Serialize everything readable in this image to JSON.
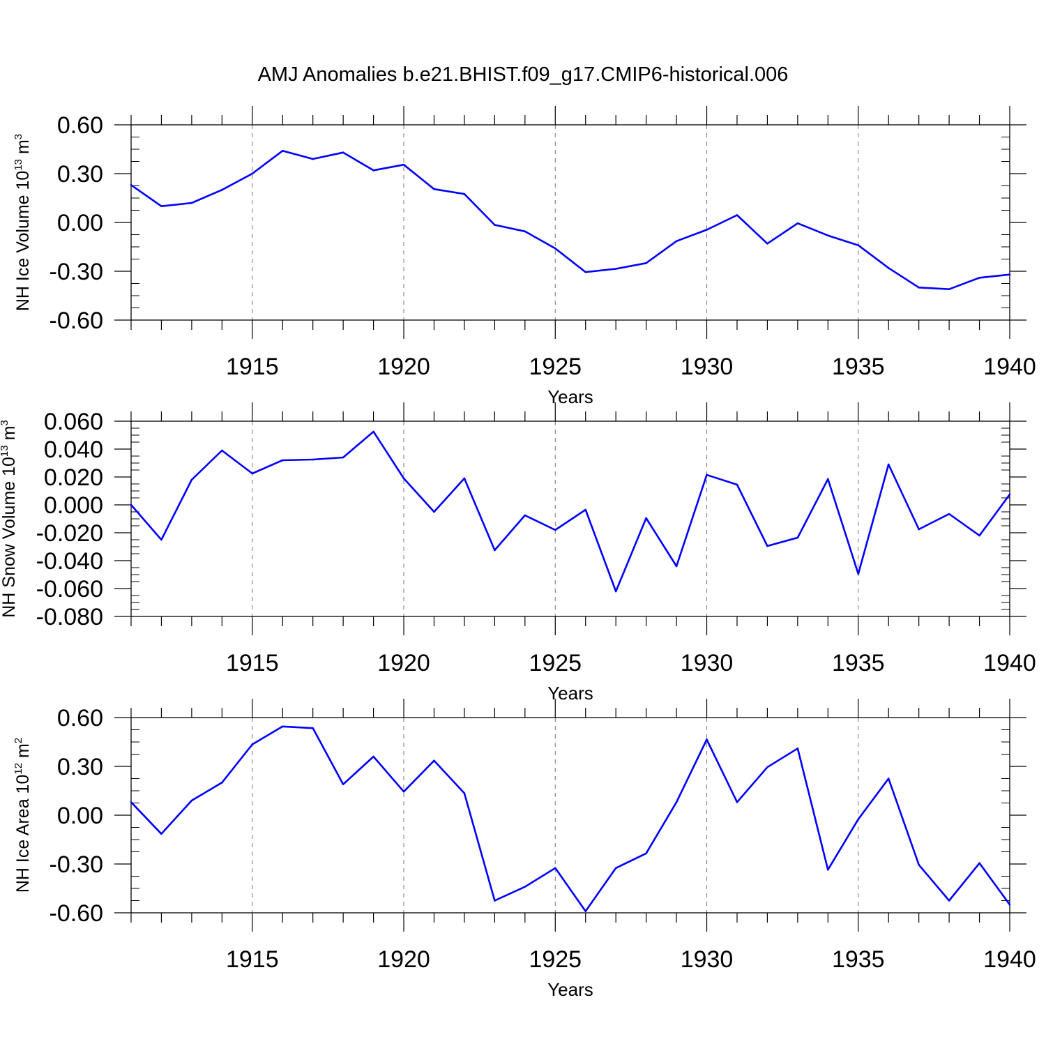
{
  "chart_data": {
    "title": "AMJ Anomalies b.e21.BHIST.f09_g17.CMIP6-historical.006",
    "type": "line",
    "line_color": "#0000ff",
    "panels": [
      {
        "type": "line",
        "ylabel": "NH Ice Volume 10",
        "ylabel_exponent": "13",
        "ylabel_unit": " m",
        "ylabel_unit_exponent": "3",
        "xlabel": "Years",
        "xlim": [
          1911,
          1940
        ],
        "ylim": [
          -0.6,
          0.6
        ],
        "yticks": [
          0.6,
          0.3,
          0.0,
          -0.3,
          -0.6
        ],
        "ytick_labels": [
          "0.60",
          "0.30",
          "0.00",
          "-0.30",
          "-0.60"
        ],
        "xticks": [
          1915,
          1920,
          1925,
          1930,
          1935,
          1940
        ],
        "xtick_labels": [
          "1915",
          "1920",
          "1925",
          "1930",
          "1935",
          "1940"
        ],
        "grid": "vertical dashed at labeled years",
        "x": [
          1911,
          1912,
          1913,
          1914,
          1915,
          1916,
          1917,
          1918,
          1919,
          1920,
          1921,
          1922,
          1923,
          1924,
          1925,
          1926,
          1927,
          1928,
          1929,
          1930,
          1931,
          1932,
          1933,
          1934,
          1935,
          1936,
          1937,
          1938,
          1939,
          1940
        ],
        "values": [
          0.23,
          0.1,
          0.12,
          0.2,
          0.3,
          0.44,
          0.39,
          0.43,
          0.32,
          0.355,
          0.205,
          0.175,
          -0.015,
          -0.055,
          -0.16,
          -0.305,
          -0.285,
          -0.25,
          -0.115,
          -0.045,
          0.045,
          -0.13,
          -0.005,
          -0.08,
          -0.14,
          -0.28,
          -0.4,
          -0.41,
          -0.34,
          -0.32
        ]
      },
      {
        "type": "line",
        "ylabel": "NH Snow Volume 10",
        "ylabel_exponent": "13",
        "ylabel_unit": " m",
        "ylabel_unit_exponent": "3",
        "xlabel": "Years",
        "xlim": [
          1911,
          1940
        ],
        "ylim": [
          -0.08,
          0.06
        ],
        "yticks": [
          0.06,
          0.04,
          0.02,
          0.0,
          -0.02,
          -0.04,
          -0.06,
          -0.08
        ],
        "ytick_labels": [
          "0.060",
          "0.040",
          "0.020",
          "0.000",
          "-0.020",
          "-0.040",
          "-0.060",
          "-0.080"
        ],
        "xticks": [
          1915,
          1920,
          1925,
          1930,
          1935,
          1940
        ],
        "xtick_labels": [
          "1915",
          "1920",
          "1925",
          "1930",
          "1935",
          "1940"
        ],
        "grid": "vertical dashed at labeled years",
        "x": [
          1911,
          1912,
          1913,
          1914,
          1915,
          1916,
          1917,
          1918,
          1919,
          1920,
          1921,
          1922,
          1923,
          1924,
          1925,
          1926,
          1927,
          1928,
          1929,
          1930,
          1931,
          1932,
          1933,
          1934,
          1935,
          1936,
          1937,
          1938,
          1939,
          1940
        ],
        "values": [
          0.0,
          -0.025,
          0.018,
          0.039,
          0.0225,
          0.032,
          0.0325,
          0.034,
          0.0525,
          0.019,
          -0.005,
          0.019,
          -0.0325,
          -0.0075,
          -0.018,
          -0.0035,
          -0.062,
          -0.0095,
          -0.044,
          0.0215,
          0.0145,
          -0.0295,
          -0.0235,
          0.0185,
          -0.0495,
          0.029,
          -0.0175,
          -0.0065,
          -0.022,
          0.0075
        ]
      },
      {
        "type": "line",
        "ylabel": "NH Ice Area 10",
        "ylabel_exponent": "12",
        "ylabel_unit": " m",
        "ylabel_unit_exponent": "2",
        "xlabel": "Years",
        "xlim": [
          1911,
          1940
        ],
        "ylim": [
          -0.6,
          0.6
        ],
        "yticks": [
          0.6,
          0.3,
          0.0,
          -0.3,
          -0.6
        ],
        "ytick_labels": [
          "0.60",
          "0.30",
          "0.00",
          "-0.30",
          "-0.60"
        ],
        "xticks": [
          1915,
          1920,
          1925,
          1930,
          1935,
          1940
        ],
        "xtick_labels": [
          "1915",
          "1920",
          "1925",
          "1930",
          "1935",
          "1940"
        ],
        "grid": "vertical dashed at labeled years",
        "x": [
          1911,
          1912,
          1913,
          1914,
          1915,
          1916,
          1917,
          1918,
          1919,
          1920,
          1921,
          1922,
          1923,
          1924,
          1925,
          1926,
          1927,
          1928,
          1929,
          1930,
          1931,
          1932,
          1933,
          1934,
          1935,
          1936,
          1937,
          1938,
          1939,
          1940
        ],
        "values": [
          0.08,
          -0.115,
          0.09,
          0.2,
          0.435,
          0.545,
          0.535,
          0.19,
          0.36,
          0.145,
          0.335,
          0.135,
          -0.525,
          -0.44,
          -0.325,
          -0.59,
          -0.325,
          -0.235,
          0.08,
          0.465,
          0.08,
          0.295,
          0.41,
          -0.335,
          -0.025,
          0.225,
          -0.305,
          -0.525,
          -0.295,
          -0.55
        ]
      }
    ]
  }
}
